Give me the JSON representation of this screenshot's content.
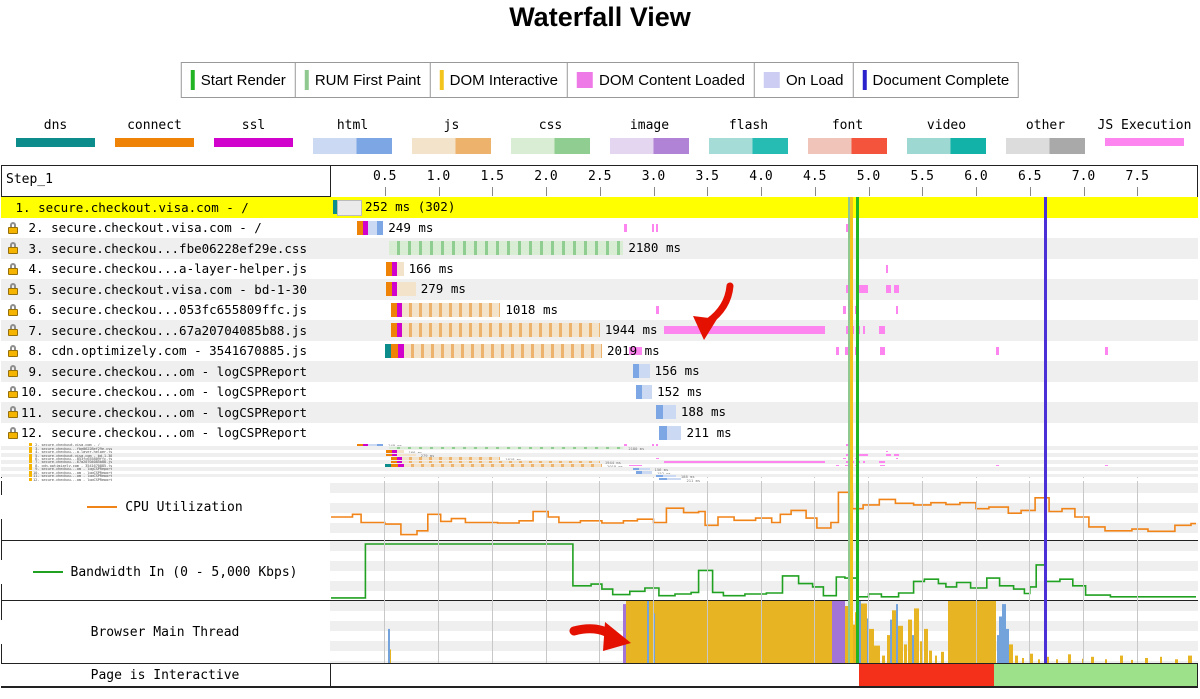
{
  "title": "Waterfall View",
  "annotations": {
    "color": "#e41000",
    "arrow1": "hand-drawn arrow pointing down at JS execution bar of request 7",
    "arrow2": "hand-drawn arrow pointing right at start of browser main thread activity"
  },
  "event_legend": [
    {
      "label": "Start Render",
      "color": "#23b423",
      "type": "line"
    },
    {
      "label": "RUM First Paint",
      "color": "#8fc98f",
      "type": "line"
    },
    {
      "label": "DOM Interactive",
      "color": "#f2c41c",
      "type": "line"
    },
    {
      "label": "DOM Content Loaded",
      "color": "#ee7ae8",
      "type": "box"
    },
    {
      "label": "On Load",
      "color": "#cdcdf4",
      "type": "box"
    },
    {
      "label": "Document Complete",
      "color": "#2a20cc",
      "type": "line"
    }
  ],
  "resource_legend": [
    {
      "label": "dns",
      "light": "#0d8c8c",
      "dark": "#0d8c8c",
      "style": "solid"
    },
    {
      "label": "connect",
      "light": "#ee8308",
      "dark": "#ee8308",
      "style": "solid"
    },
    {
      "label": "ssl",
      "light": "#d102cb",
      "dark": "#d102cb",
      "style": "solid"
    },
    {
      "label": "html",
      "light": "#ccd9f2",
      "dark": "#7da6e4",
      "style": "duo"
    },
    {
      "label": "js",
      "light": "#f2e3ca",
      "dark": "#edb26b",
      "style": "duo"
    },
    {
      "label": "css",
      "light": "#d9edd5",
      "dark": "#90cd90",
      "style": "duo"
    },
    {
      "label": "image",
      "light": "#e4d6f0",
      "dark": "#b183d6",
      "style": "duo"
    },
    {
      "label": "flash",
      "light": "#a5dcd8",
      "dark": "#26bcb4",
      "style": "duo"
    },
    {
      "label": "font",
      "light": "#f0c4b8",
      "dark": "#f4543c",
      "style": "duo"
    },
    {
      "label": "video",
      "light": "#9ed8d2",
      "dark": "#12b2a8",
      "style": "duo"
    },
    {
      "label": "other",
      "light": "#dcdcdc",
      "dark": "#a9a9a9",
      "style": "duo"
    },
    {
      "label": "JS Execution",
      "light": "#fc85f0",
      "dark": "#fc85f0",
      "style": "exec"
    }
  ],
  "waterfall": {
    "step_label": "Step_1",
    "axis_ticks": [
      "0.5",
      "1.0",
      "1.5",
      "2.0",
      "2.5",
      "3.0",
      "3.5",
      "4.0",
      "4.5",
      "5.0",
      "5.5",
      "6.0",
      "6.5",
      "7.0",
      "7.5"
    ],
    "requests": [
      {
        "num": " 1.",
        "name": "secure.checkout.visa.com - /",
        "time": "252 ms (302)",
        "lock": false,
        "highlight": true,
        "start": 0.009,
        "segs": [
          [
            "dns",
            40
          ],
          [
            "redir",
            212
          ]
        ],
        "exec": []
      },
      {
        "num": " 2.",
        "name": "secure.checkout.visa.com - /",
        "time": "249 ms",
        "lock": true,
        "start": 0.228,
        "segs": [
          [
            "connect",
            60
          ],
          [
            "ssl",
            45
          ],
          [
            "html_l",
            85
          ],
          [
            "html_d",
            59
          ]
        ],
        "exec": [
          [
            2.715,
            25
          ],
          [
            2.975,
            20
          ],
          [
            3.01,
            15
          ],
          [
            4.785,
            20
          ],
          [
            6.625,
            18
          ]
        ]
      },
      {
        "num": " 3.",
        "name": "secure.checkou...fbe06228ef29e.css",
        "time": "2180 ms",
        "lock": true,
        "start": 0.53,
        "segs": [
          [
            "css_s",
            2180
          ]
        ],
        "exec": []
      },
      {
        "num": " 4.",
        "name": "secure.checkou...a-layer-helper.js",
        "time": "166 ms",
        "lock": true,
        "start": 0.5,
        "segs": [
          [
            "connect",
            60
          ],
          [
            "ssl",
            45
          ],
          [
            "js_l",
            61
          ]
        ],
        "exec": [
          [
            5.15,
            12
          ]
        ]
      },
      {
        "num": " 5.",
        "name": "secure.checkout.visa.com - bd-1-30",
        "time": "279 ms",
        "lock": true,
        "start": 0.5,
        "segs": [
          [
            "connect",
            60
          ],
          [
            "ssl",
            45
          ],
          [
            "js_l",
            174
          ]
        ],
        "exec": [
          [
            4.785,
            60
          ],
          [
            4.89,
            95
          ],
          [
            5.15,
            50
          ],
          [
            5.23,
            40
          ]
        ]
      },
      {
        "num": " 6.",
        "name": "secure.checkou...053fc655809ffc.js",
        "time": "1018 ms",
        "lock": true,
        "start": 0.548,
        "segs": [
          [
            "connect",
            60
          ],
          [
            "ssl",
            45
          ],
          [
            "js_s",
            913
          ]
        ],
        "exec": [
          [
            3.01,
            30
          ],
          [
            4.755,
            22
          ],
          [
            4.805,
            30
          ],
          [
            4.868,
            20
          ],
          [
            5.25,
            12
          ]
        ]
      },
      {
        "num": " 7.",
        "name": "secure.checkou...67a20704085b88.js",
        "time": "1944 ms",
        "lock": true,
        "start": 0.548,
        "segs": [
          [
            "connect",
            60
          ],
          [
            "ssl",
            45
          ],
          [
            "js_s",
            1839
          ]
        ],
        "exec": [
          [
            3.085,
            1505
          ],
          [
            4.778,
            75
          ],
          [
            4.88,
            28
          ],
          [
            4.94,
            20
          ],
          [
            5.085,
            58
          ]
        ]
      },
      {
        "num": " 8.",
        "name": "cdn.optimizely.com - 3541670885.js",
        "time": "2019 ms",
        "lock": true,
        "start": 0.493,
        "segs": [
          [
            "dns",
            55
          ],
          [
            "connect",
            65
          ],
          [
            "ssl",
            55
          ],
          [
            "js_s",
            1844
          ]
        ],
        "exec": [
          [
            2.76,
            120
          ],
          [
            4.692,
            20
          ],
          [
            4.775,
            60
          ],
          [
            4.862,
            15
          ],
          [
            5.1,
            40
          ],
          [
            6.178,
            25
          ],
          [
            7.19,
            28
          ]
        ]
      },
      {
        "num": " 9.",
        "name": "secure.checkou...om - logCSPReport",
        "time": "156 ms",
        "lock": true,
        "start": 2.798,
        "segs": [
          [
            "html_d",
            60
          ],
          [
            "html_l",
            96
          ]
        ],
        "exec": []
      },
      {
        "num": "10.",
        "name": "secure.checkou...om - logCSPReport",
        "time": "152 ms",
        "lock": true,
        "start": 2.826,
        "segs": [
          [
            "html_d",
            60
          ],
          [
            "html_l",
            92
          ]
        ],
        "exec": []
      },
      {
        "num": "11.",
        "name": "secure.checkou...om - logCSPReport",
        "time": "188 ms",
        "lock": true,
        "start": 3.011,
        "segs": [
          [
            "html_d",
            70
          ],
          [
            "html_l",
            118
          ]
        ],
        "exec": []
      },
      {
        "num": "12.",
        "name": "secure.checkou...om - logCSPReport",
        "time": "211 ms",
        "lock": true,
        "start": 3.04,
        "segs": [
          [
            "html_d",
            75
          ],
          [
            "html_l",
            136
          ]
        ],
        "exec": []
      }
    ]
  },
  "sections": {
    "cpu_label": "CPU Utilization",
    "bandwidth_label": "Bandwidth In (0 - 5,000 Kbps)",
    "main_thread_label": "Browser Main Thread",
    "interactive_label": "Page is Interactive"
  },
  "chart_data": {
    "type": "waterfall",
    "x_axis_seconds": [
      0.5,
      1.0,
      1.5,
      2.0,
      2.5,
      3.0,
      3.5,
      4.0,
      4.5,
      5.0,
      5.5,
      6.0,
      6.5,
      7.0,
      7.5
    ],
    "events": [
      {
        "name": "rum-first-paint",
        "t": 4.82,
        "color": "#8fc98f",
        "w": 2
      },
      {
        "name": "dom-interactive",
        "t": 4.845,
        "color": "#f2c41c",
        "w": 3
      },
      {
        "name": "start-render",
        "t": 4.9,
        "color": "#23b423",
        "w": 3
      },
      {
        "name": "document-complete",
        "t": 6.645,
        "color": "#4b30d8",
        "w": 3
      }
    ],
    "cpu_utilization_pct": [
      [
        0,
        40
      ],
      [
        0.2,
        45
      ],
      [
        0.28,
        30
      ],
      [
        0.5,
        27
      ],
      [
        0.65,
        8
      ],
      [
        0.8,
        15
      ],
      [
        0.9,
        45
      ],
      [
        1.02,
        32
      ],
      [
        1.12,
        37
      ],
      [
        1.25,
        30
      ],
      [
        1.55,
        29
      ],
      [
        1.75,
        33
      ],
      [
        1.88,
        50
      ],
      [
        2.02,
        40
      ],
      [
        2.12,
        30
      ],
      [
        2.32,
        33
      ],
      [
        2.52,
        29
      ],
      [
        2.72,
        33
      ],
      [
        2.85,
        36
      ],
      [
        3.0,
        30
      ],
      [
        3.12,
        56
      ],
      [
        3.28,
        48
      ],
      [
        3.42,
        50
      ],
      [
        3.48,
        25
      ],
      [
        3.6,
        40
      ],
      [
        3.75,
        34
      ],
      [
        3.95,
        38
      ],
      [
        4.1,
        30
      ],
      [
        4.18,
        45
      ],
      [
        4.28,
        52
      ],
      [
        4.42,
        38
      ],
      [
        4.52,
        20
      ],
      [
        4.65,
        30
      ],
      [
        4.72,
        85
      ],
      [
        4.85,
        55
      ],
      [
        4.95,
        62
      ],
      [
        5.1,
        72
      ],
      [
        5.25,
        65
      ],
      [
        5.42,
        62
      ],
      [
        5.58,
        66
      ],
      [
        5.72,
        63
      ],
      [
        5.85,
        66
      ],
      [
        6.0,
        55
      ],
      [
        6.12,
        58
      ],
      [
        6.3,
        47
      ],
      [
        6.42,
        52
      ],
      [
        6.55,
        75
      ],
      [
        6.68,
        50
      ],
      [
        6.8,
        55
      ],
      [
        6.92,
        40
      ],
      [
        7.05,
        22
      ],
      [
        7.2,
        15
      ],
      [
        7.45,
        18
      ],
      [
        7.6,
        14
      ],
      [
        7.85,
        25
      ],
      [
        8.0,
        28
      ]
    ],
    "bandwidth_pct": [
      [
        0,
        2
      ],
      [
        0.32,
        100
      ],
      [
        2.25,
        24
      ],
      [
        2.42,
        27
      ],
      [
        2.52,
        18
      ],
      [
        2.62,
        8
      ],
      [
        2.78,
        14
      ],
      [
        2.92,
        20
      ],
      [
        3.05,
        6
      ],
      [
        3.2,
        9
      ],
      [
        3.35,
        12
      ],
      [
        3.42,
        52
      ],
      [
        3.55,
        12
      ],
      [
        3.65,
        6
      ],
      [
        3.85,
        9
      ],
      [
        4.05,
        11
      ],
      [
        4.2,
        42
      ],
      [
        4.35,
        28
      ],
      [
        4.48,
        22
      ],
      [
        4.58,
        6
      ],
      [
        4.7,
        40
      ],
      [
        4.78,
        38
      ],
      [
        4.9,
        4
      ],
      [
        5.0,
        9
      ],
      [
        5.12,
        4
      ],
      [
        5.28,
        11
      ],
      [
        5.42,
        32
      ],
      [
        5.52,
        36
      ],
      [
        5.65,
        28
      ],
      [
        5.72,
        22
      ],
      [
        5.82,
        30
      ],
      [
        5.95,
        20
      ],
      [
        6.1,
        38
      ],
      [
        6.22,
        24
      ],
      [
        6.35,
        18
      ],
      [
        6.45,
        10
      ],
      [
        6.5,
        22
      ],
      [
        6.56,
        62
      ],
      [
        6.65,
        32
      ],
      [
        6.78,
        36
      ],
      [
        6.9,
        24
      ],
      [
        7.02,
        7
      ],
      [
        7.25,
        4
      ],
      [
        8.0,
        4
      ]
    ],
    "main_thread_bars": [
      [
        57,
        2,
        55,
        "b"
      ],
      [
        59,
        1,
        22,
        "y"
      ],
      [
        292,
        3,
        95,
        "p"
      ],
      [
        295,
        45,
        100,
        "y"
      ],
      [
        316,
        2,
        100,
        "b"
      ],
      [
        322,
        2,
        80,
        "b"
      ],
      [
        340,
        161,
        100,
        "y"
      ],
      [
        501,
        13,
        100,
        "p"
      ],
      [
        514,
        7,
        92,
        "y"
      ],
      [
        521,
        3,
        62,
        "y"
      ],
      [
        524,
        4,
        82,
        "y"
      ],
      [
        528,
        2,
        100,
        "b"
      ],
      [
        530,
        6,
        96,
        "y"
      ],
      [
        536,
        2,
        72,
        "b"
      ],
      [
        538,
        5,
        55,
        "y"
      ],
      [
        543,
        6,
        28,
        "y"
      ],
      [
        551,
        3,
        12,
        "y"
      ],
      [
        556,
        3,
        45,
        "y"
      ],
      [
        559,
        2,
        70,
        "b"
      ],
      [
        561,
        4,
        85,
        "y"
      ],
      [
        565,
        2,
        95,
        "b"
      ],
      [
        567,
        5,
        60,
        "y"
      ],
      [
        573,
        3,
        30,
        "y"
      ],
      [
        577,
        4,
        70,
        "y"
      ],
      [
        581,
        2,
        45,
        "b"
      ],
      [
        583,
        5,
        88,
        "y"
      ],
      [
        589,
        3,
        35,
        "y"
      ],
      [
        593,
        4,
        55,
        "y"
      ],
      [
        598,
        3,
        20,
        "y"
      ],
      [
        604,
        2,
        12,
        "y"
      ],
      [
        610,
        3,
        18,
        "y"
      ],
      [
        617,
        48,
        100,
        "y"
      ],
      [
        666,
        2,
        45,
        "b"
      ],
      [
        668,
        3,
        75,
        "b"
      ],
      [
        671,
        4,
        95,
        "b"
      ],
      [
        675,
        3,
        55,
        "b"
      ],
      [
        678,
        4,
        30,
        "y"
      ],
      [
        684,
        3,
        12,
        "y"
      ],
      [
        691,
        2,
        8,
        "y"
      ],
      [
        699,
        3,
        15,
        "y"
      ],
      [
        707,
        2,
        6,
        "y"
      ],
      [
        714,
        4,
        10,
        "y"
      ],
      [
        725,
        2,
        6,
        "y"
      ],
      [
        737,
        3,
        14,
        "y"
      ],
      [
        751,
        2,
        7,
        "y"
      ],
      [
        760,
        3,
        10,
        "y"
      ],
      [
        774,
        2,
        6,
        "y"
      ],
      [
        789,
        3,
        12,
        "y"
      ],
      [
        800,
        2,
        5,
        "y"
      ],
      [
        814,
        3,
        8,
        "y"
      ],
      [
        829,
        2,
        10,
        "y"
      ],
      [
        844,
        3,
        6,
        "y"
      ],
      [
        857,
        4,
        12,
        "y"
      ]
    ],
    "main_thread_colors": {
      "y": "#e7b424",
      "p": "#a274d8",
      "b": "#74a3dc"
    },
    "interactive_segments": [
      {
        "t0": 4.9,
        "t1": 6.16,
        "state": "not-interactive",
        "color": "#f5301a"
      },
      {
        "t0": 6.16,
        "t1": 8.05,
        "state": "interactive",
        "color": "#9de18b"
      }
    ]
  },
  "colors": {
    "highlight_row": "#ffff00",
    "alt_row": "#efefef",
    "grid": "#c8c8c8",
    "cpu_line": "#f08418",
    "bandwidth_line": "#21a121",
    "seg": {
      "dns": "#0d8c8c",
      "connect": "#ee8308",
      "ssl": "#d102cb",
      "html_l": "#ccd9f2",
      "html_d": "#7da6e4",
      "js_l": "#f2e3ca",
      "js_d": "#edb26b",
      "css_l": "#d9edd5",
      "css_d": "#90cd90",
      "redir": "#ebebeb",
      "exec": "#fc85f0"
    }
  }
}
